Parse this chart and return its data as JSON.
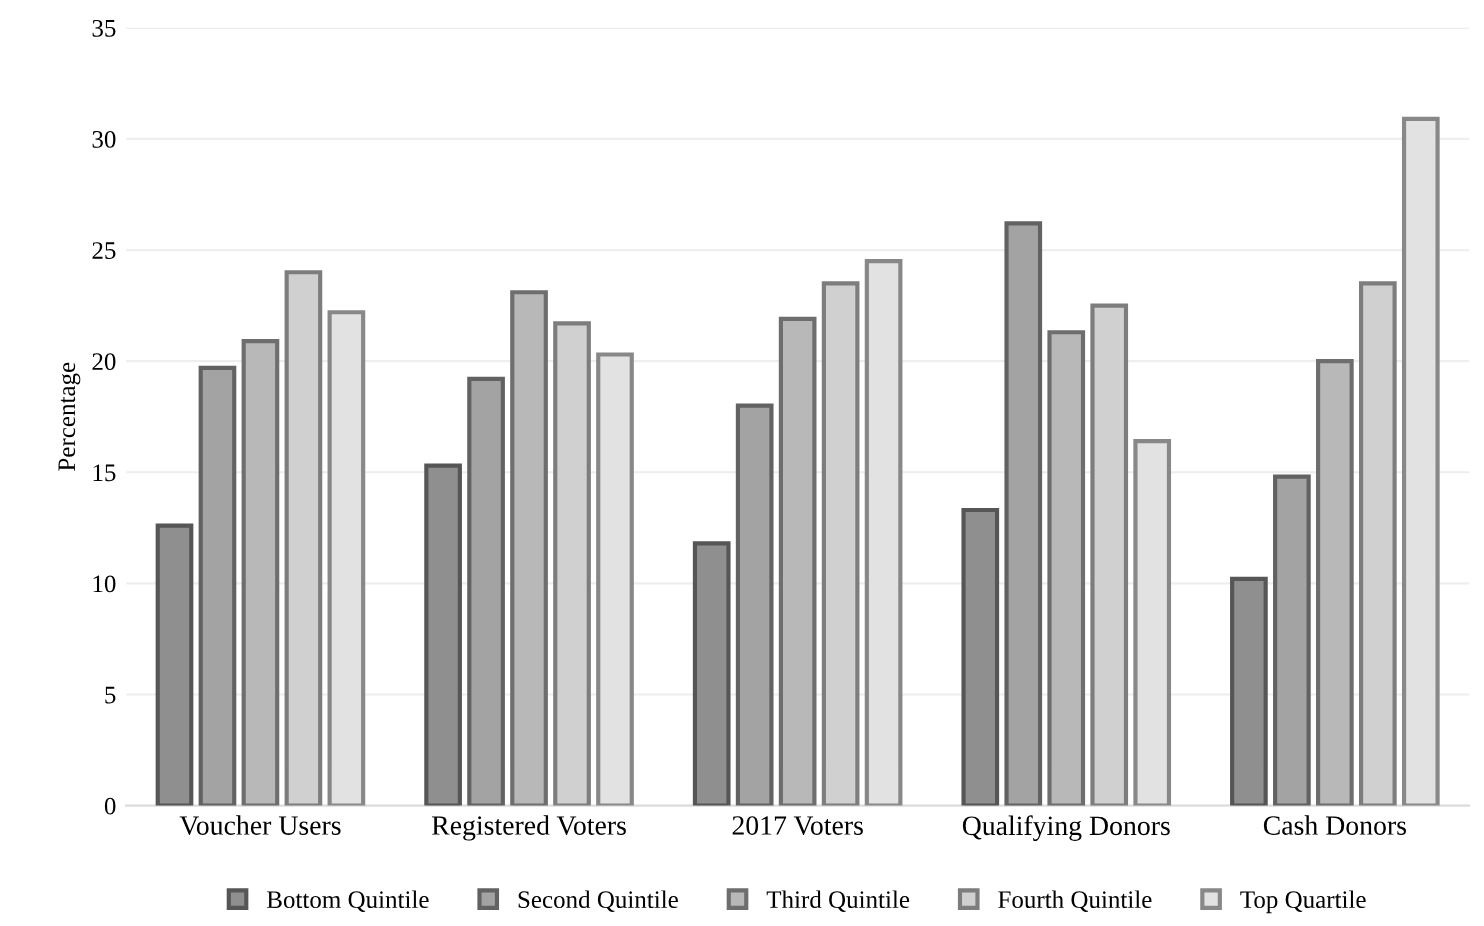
{
  "chart_data": {
    "type": "bar",
    "ylabel": "Percentage",
    "categories": [
      "Voucher Users",
      "Registered Voters",
      "2017 Voters",
      "Qualifying Donors",
      "Cash Donors"
    ],
    "series": [
      {
        "name": "Bottom Quintile",
        "color": "#8f8f8f",
        "values": [
          12.6,
          15.3,
          11.8,
          13.3,
          10.2
        ]
      },
      {
        "name": "Second Quintile",
        "color": "#a3a3a3",
        "values": [
          19.7,
          19.2,
          18.0,
          26.2,
          14.8
        ]
      },
      {
        "name": "Third Quintile",
        "color": "#b8b8b8",
        "values": [
          20.9,
          23.1,
          21.9,
          21.3,
          20.0
        ]
      },
      {
        "name": "Fourth Quintile",
        "color": "#d0d0d0",
        "values": [
          24.0,
          21.7,
          23.5,
          22.5,
          23.5
        ]
      },
      {
        "name": "Top Quartile",
        "color": "#e2e2e2",
        "values": [
          22.2,
          20.3,
          24.5,
          16.4,
          30.9
        ]
      }
    ],
    "ylim": [
      0,
      35
    ],
    "yticks": [
      0,
      5,
      10,
      15,
      20,
      25,
      30,
      35
    ],
    "grid": "y",
    "legend": "bottom"
  }
}
